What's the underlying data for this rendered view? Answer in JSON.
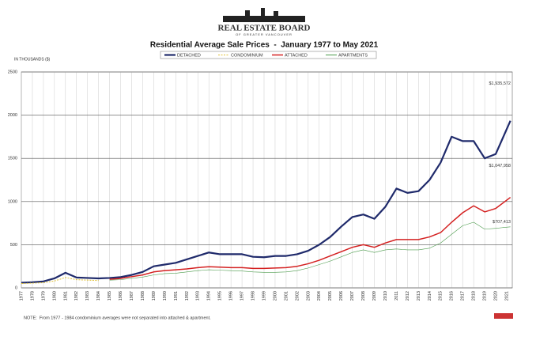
{
  "header": {
    "logo_title": "REAL ESTATE BOARD",
    "logo_subtitle": "OF GREATER VANCOUVER"
  },
  "chart_data": {
    "type": "line",
    "title": "Residential Average Sale Prices  -  January 1977 to May 2021",
    "y_label": "IN THOUSANDS ($)",
    "note": "NOTE:  From 1977 - 1984 condominium averages were not separated into attached & apartment.",
    "annotations": [
      "$1,935,572",
      "$1,047,958",
      "$707,413"
    ],
    "x": [
      1977,
      1978,
      1979,
      1980,
      1981,
      1982,
      1983,
      1984,
      1985,
      1986,
      1987,
      1988,
      1989,
      1990,
      1991,
      1992,
      1993,
      1994,
      1995,
      1996,
      1997,
      1998,
      1999,
      2000,
      2001,
      2002,
      2003,
      2004,
      2005,
      2006,
      2007,
      2008,
      2009,
      2010,
      2011,
      2012,
      2013,
      2014,
      2015,
      2016,
      2017,
      2018,
      2019,
      2020,
      2021.33
    ],
    "series": [
      {
        "name": "DETACHED",
        "color": "#1f2a6b",
        "values": [
          60,
          65,
          75,
          110,
          175,
          120,
          115,
          110,
          115,
          125,
          150,
          185,
          250,
          270,
          290,
          330,
          370,
          410,
          390,
          390,
          390,
          360,
          355,
          370,
          370,
          390,
          430,
          500,
          590,
          710,
          820,
          850,
          800,
          940,
          1150,
          1100,
          1120,
          1250,
          1450,
          1750,
          1700,
          1700,
          1500,
          1550,
          1935
        ]
      },
      {
        "name": "CONDOMINIUM",
        "color": "#e0c030",
        "values": [
          50,
          55,
          60,
          80,
          120,
          95,
          90,
          85,
          null,
          null,
          null,
          null,
          null,
          null,
          null,
          null,
          null,
          null,
          null,
          null,
          null,
          null,
          null,
          null,
          null,
          null,
          null,
          null,
          null,
          null,
          null,
          null,
          null,
          null,
          null,
          null,
          null,
          null,
          null,
          null,
          null,
          null,
          null,
          null,
          null
        ]
      },
      {
        "name": "ATTACHED",
        "color": "#d42020",
        "values": [
          null,
          null,
          null,
          null,
          null,
          null,
          null,
          null,
          100,
          110,
          130,
          150,
          185,
          200,
          210,
          220,
          235,
          245,
          240,
          235,
          235,
          225,
          225,
          230,
          235,
          250,
          280,
          320,
          370,
          420,
          470,
          500,
          470,
          520,
          560,
          560,
          560,
          590,
          640,
          760,
          870,
          950,
          880,
          920,
          1048
        ]
      },
      {
        "name": "APARTMENTS",
        "color": "#4a9a4a",
        "values": [
          null,
          null,
          null,
          null,
          null,
          null,
          null,
          null,
          90,
          95,
          110,
          125,
          150,
          165,
          170,
          185,
          200,
          210,
          205,
          200,
          195,
          185,
          180,
          180,
          185,
          200,
          230,
          270,
          310,
          360,
          410,
          440,
          410,
          440,
          450,
          440,
          440,
          460,
          520,
          620,
          720,
          760,
          680,
          690,
          707
        ]
      }
    ],
    "xlim": [
      1977,
      2021.5
    ],
    "xticks": [
      1977,
      1978,
      1979,
      1980,
      1981,
      1982,
      1983,
      1984,
      1985,
      1986,
      1987,
      1988,
      1989,
      1990,
      1991,
      1992,
      1993,
      1994,
      1995,
      1996,
      1997,
      1998,
      1999,
      2000,
      2001,
      2002,
      2003,
      2004,
      2005,
      2006,
      2007,
      2008,
      2009,
      2010,
      2011,
      2012,
      2013,
      2014,
      2015,
      2016,
      2017,
      2018,
      2019,
      2020,
      2021
    ],
    "ylim": [
      0,
      2500
    ],
    "yticks": [
      0,
      500,
      1000,
      1500,
      2000,
      2500
    ],
    "grid": true
  }
}
